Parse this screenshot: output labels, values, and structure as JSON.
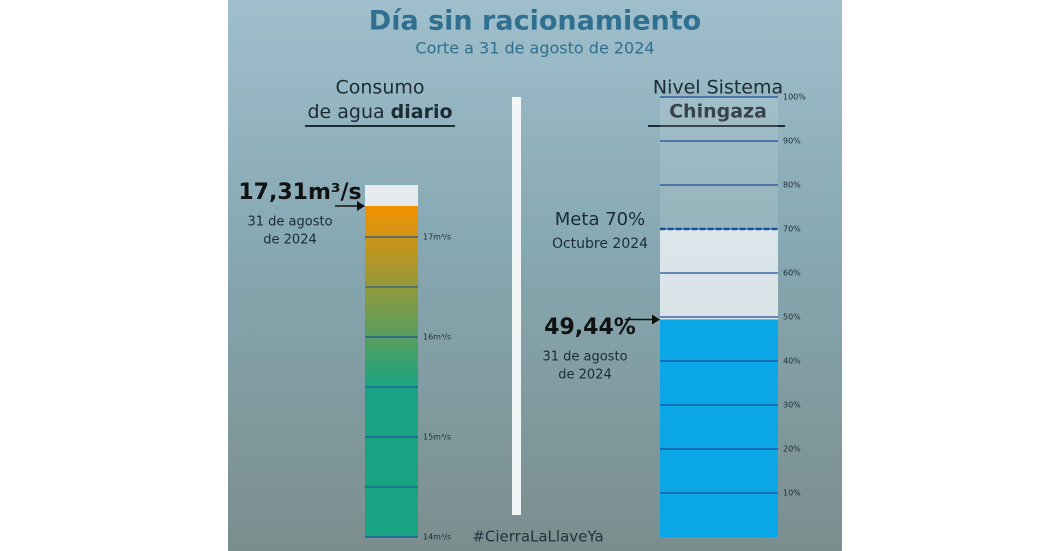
{
  "header": {
    "title": "Día sin racionamiento",
    "subtitle": "Corte a 31 de agosto de 2024",
    "hashtag": "#CierraLaLlaveYa"
  },
  "chart_data": [
    {
      "type": "bar",
      "title": "Consumo",
      "title_line2": "de agua",
      "title_bold": "diario",
      "values": [
        17.31
      ],
      "value_labels": [
        "17,31m³/s"
      ],
      "date_label": [
        "31 de agosto",
        "de 2024"
      ],
      "ylim": [
        14,
        17.52
      ],
      "yticks": [
        {
          "value": 14,
          "label": "14m³/s"
        },
        {
          "value": 15,
          "label": "15m³/s"
        },
        {
          "value": 16,
          "label": "16m³/s"
        },
        {
          "value": 17,
          "label": "17m³/s"
        }
      ],
      "minor_yticks": [
        14.5,
        15.5,
        16.5
      ],
      "colors": [
        "#f39200",
        "#1aa383"
      ]
    },
    {
      "type": "bar",
      "title": "Nivel Sistema",
      "title_bold": "Chingaza",
      "values": [
        49.44
      ],
      "value_labels": [
        "49,44%"
      ],
      "date_label": [
        "31 de agosto",
        "de 2024"
      ],
      "target": {
        "value": 70,
        "label": "Meta 70%",
        "sublabel": "Octubre 2024"
      },
      "ylim": [
        0,
        100
      ],
      "yticks": [
        {
          "value": 10,
          "label": "10%"
        },
        {
          "value": 20,
          "label": "20%"
        },
        {
          "value": 30,
          "label": "30%"
        },
        {
          "value": 40,
          "label": "40%"
        },
        {
          "value": 50,
          "label": "50%"
        },
        {
          "value": 60,
          "label": "60%"
        },
        {
          "value": 70,
          "label": "70%"
        },
        {
          "value": 80,
          "label": "80%"
        },
        {
          "value": 90,
          "label": "90%"
        },
        {
          "value": 100,
          "label": "100%"
        }
      ],
      "color": "#0aa6e6"
    }
  ]
}
